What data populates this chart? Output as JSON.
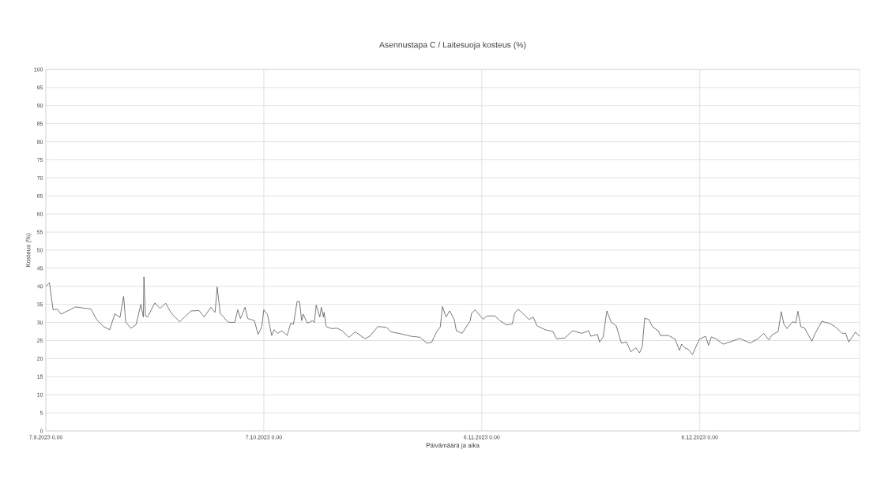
{
  "chart_data": {
    "type": "line",
    "title": "Asennustapa C / Laitesuoja kosteus (%)",
    "xlabel": "Päivämäärä ja aika",
    "ylabel": "Kosteus (%)",
    "xlim": [
      "2023-09-07T00:00",
      "2023-12-28T00:00"
    ],
    "xticks": [
      {
        "value": "2023-09-07",
        "label": "7.9.2023 0.00"
      },
      {
        "value": "2023-10-07",
        "label": "7.10.2023 0.00"
      },
      {
        "value": "2023-11-06",
        "label": "6.11.2023 0.00"
      },
      {
        "value": "2023-12-06",
        "label": "6.12.2023 0.00"
      }
    ],
    "ylim": [
      0,
      100
    ],
    "yticks": [
      0,
      5,
      10,
      15,
      20,
      25,
      30,
      35,
      40,
      45,
      50,
      55,
      60,
      65,
      70,
      75,
      80,
      85,
      90,
      95,
      100
    ],
    "grid": true,
    "marker": "none",
    "line_style": "solid",
    "x": [
      "2023-09-07T00:00",
      "2023-09-07T12:00",
      "2023-09-08T00:00",
      "2023-09-08T14:00",
      "2023-09-09T02:00",
      "2023-09-10T00:00",
      "2023-09-11T02:00",
      "2023-09-13T05:00",
      "2023-09-14T00:00",
      "2023-09-14T22:00",
      "2023-09-15T19:00",
      "2023-09-16T12:00",
      "2023-09-17T05:00",
      "2023-09-17T17:00",
      "2023-09-18T00:00",
      "2023-09-18T17:00",
      "2023-09-19T10:00",
      "2023-09-20T02:00",
      "2023-09-20T10:00",
      "2023-09-20T12:00",
      "2023-09-20T17:00",
      "2023-09-21T00:00",
      "2023-09-22T00:00",
      "2023-09-22T17:00",
      "2023-09-23T12:00",
      "2023-09-24T07:00",
      "2023-09-25T10:00",
      "2023-09-26T02:00",
      "2023-09-27T00:00",
      "2023-09-28T02:00",
      "2023-09-28T19:00",
      "2023-09-29T17:00",
      "2023-09-30T07:00",
      "2023-09-30T14:00",
      "2023-10-01T00:00",
      "2023-10-02T02:00",
      "2023-10-03T00:00",
      "2023-10-03T10:00",
      "2023-10-03T19:00",
      "2023-10-04T10:00",
      "2023-10-04T19:00",
      "2023-10-05T17:00",
      "2023-10-06T05:00",
      "2023-10-06T17:00",
      "2023-10-07T00:00",
      "2023-10-07T12:00",
      "2023-10-08T02:00",
      "2023-10-08T10:00",
      "2023-10-08T22:00",
      "2023-10-09T12:00",
      "2023-10-10T05:00",
      "2023-10-10T17:00",
      "2023-10-11T02:00",
      "2023-10-11T14:00",
      "2023-10-11T22:00",
      "2023-10-12T05:00",
      "2023-10-12T10:00",
      "2023-10-13T00:00",
      "2023-10-13T17:00",
      "2023-10-13T23:00",
      "2023-10-14T05:00",
      "2023-10-14T17:00",
      "2023-10-14T22:00",
      "2023-10-15T05:00",
      "2023-10-15T07:00",
      "2023-10-15T14:00",
      "2023-10-16T07:00",
      "2023-10-17T02:00",
      "2023-10-17T19:00",
      "2023-10-18T17:00",
      "2023-10-19T14:00",
      "2023-10-20T22:00",
      "2023-10-21T14:00",
      "2023-10-22T17:00",
      "2023-10-23T22:00",
      "2023-10-24T12:00",
      "2023-10-25T19:00",
      "2023-10-27T05:00",
      "2023-10-28T12:00",
      "2023-10-29T10:00",
      "2023-10-30T02:00",
      "2023-10-30T19:00",
      "2023-10-31T07:00",
      "2023-10-31T14:00",
      "2023-11-01T02:00",
      "2023-11-01T14:00",
      "2023-11-02T05:00",
      "2023-11-02T12:00",
      "2023-11-03T07:00",
      "2023-11-04T10:00",
      "2023-11-04T14:00",
      "2023-11-05T02:00",
      "2023-11-05T22:00",
      "2023-11-06T05:00",
      "2023-11-06T17:00",
      "2023-11-07T19:00",
      "2023-11-08T12:00",
      "2023-11-09T10:00",
      "2023-11-10T05:00",
      "2023-11-10T12:00",
      "2023-11-11T00:00",
      "2023-11-11T19:00",
      "2023-11-12T12:00",
      "2023-11-13T02:00",
      "2023-11-13T14:00",
      "2023-11-14T17:00",
      "2023-11-15T19:00",
      "2023-11-16T07:00",
      "2023-11-17T10:00",
      "2023-11-18T12:00",
      "2023-11-19T19:00",
      "2023-11-20T17:00",
      "2023-11-21T00:00",
      "2023-11-21T22:00",
      "2023-11-22T05:00",
      "2023-11-22T17:00",
      "2023-11-23T05:00",
      "2023-11-23T19:00",
      "2023-11-24T12:00",
      "2023-11-25T05:00",
      "2023-11-25T22:00",
      "2023-11-26T12:00",
      "2023-11-27T05:00",
      "2023-11-27T17:00",
      "2023-11-28T02:00",
      "2023-11-28T10:00",
      "2023-11-29T00:00",
      "2023-11-29T12:00",
      "2023-11-30T07:00",
      "2023-11-30T14:00",
      "2023-12-01T17:00",
      "2023-12-02T14:00",
      "2023-12-03T05:00",
      "2023-12-03T12:00",
      "2023-12-03T22:00",
      "2023-12-04T10:00",
      "2023-12-05T00:00",
      "2023-12-05T22:00",
      "2023-12-06T19:00",
      "2023-12-07T05:00",
      "2023-12-07T14:00",
      "2023-12-08T05:00",
      "2023-12-09T05:00",
      "2023-12-10T10:00",
      "2023-12-11T12:00",
      "2023-12-12T22:00",
      "2023-12-14T00:00",
      "2023-12-14T19:00",
      "2023-12-15T12:00",
      "2023-12-15T22:00",
      "2023-12-16T19:00",
      "2023-12-17T05:00",
      "2023-12-17T14:00",
      "2023-12-18T00:00",
      "2023-12-18T19:00",
      "2023-12-19T05:00",
      "2023-12-19T12:00",
      "2023-12-19T22:00",
      "2023-12-20T10:00",
      "2023-12-21T10:00",
      "2023-12-22T00:00",
      "2023-12-22T19:00",
      "2023-12-23T19:00",
      "2023-12-24T14:00",
      "2023-12-25T14:00",
      "2023-12-26T02:00",
      "2023-12-26T12:00",
      "2023-12-27T10:00",
      "2023-12-28T00:00"
    ],
    "series": [
      {
        "color": "#404040",
        "values": [
          40,
          41,
          33.5,
          33.7,
          32.3,
          33.2,
          34.3,
          33.7,
          30.8,
          28.9,
          28,
          32.4,
          31.4,
          37.2,
          30.1,
          28.4,
          29.4,
          35,
          31.5,
          42.6,
          31.8,
          31.5,
          35.4,
          33.9,
          35.3,
          32.5,
          30.2,
          31.5,
          33.2,
          33.3,
          31.5,
          34.2,
          32.8,
          39.8,
          32.5,
          30.1,
          30,
          33.5,
          31.1,
          34.2,
          31.1,
          30.5,
          26.7,
          28.8,
          33.5,
          32.2,
          26.4,
          28,
          27,
          27.7,
          26.4,
          29.8,
          29.5,
          35.8,
          35.8,
          30.5,
          32.3,
          29.8,
          30.5,
          30,
          34.8,
          31.5,
          34.2,
          31.5,
          32.8,
          28.9,
          28.3,
          28.4,
          27.7,
          25.9,
          27.4,
          25.5,
          26.2,
          28.9,
          28.6,
          27.4,
          26.9,
          26.2,
          25.9,
          24.3,
          24.5,
          27.4,
          28.8,
          34.4,
          31.5,
          33.2,
          30.8,
          27.7,
          27,
          30.5,
          32.5,
          33.5,
          31.5,
          30.9,
          31.8,
          31.8,
          30.5,
          29.3,
          29.6,
          32.5,
          33.7,
          32.2,
          30.8,
          31.5,
          29.1,
          28,
          27.5,
          25.5,
          25.7,
          27.7,
          27,
          27.7,
          26.2,
          26.7,
          24.6,
          26,
          33.2,
          30.1,
          29.1,
          24.3,
          24.6,
          21.9,
          23,
          21.6,
          23.3,
          31.2,
          30.8,
          28.8,
          27.7,
          26.4,
          26.4,
          25.4,
          22.3,
          24,
          23,
          22.6,
          21.1,
          25.3,
          26.2,
          23.7,
          26,
          25.5,
          24,
          24.8,
          25.6,
          24.3,
          25.5,
          27,
          25.2,
          26.5,
          27.5,
          33,
          29.5,
          28.3,
          30.2,
          29.9,
          33.1,
          28.8,
          28.5,
          24.8,
          27.4,
          30.3,
          29.8,
          28.9,
          27,
          27,
          24.6,
          27.3,
          26.2
        ]
      }
    ]
  }
}
